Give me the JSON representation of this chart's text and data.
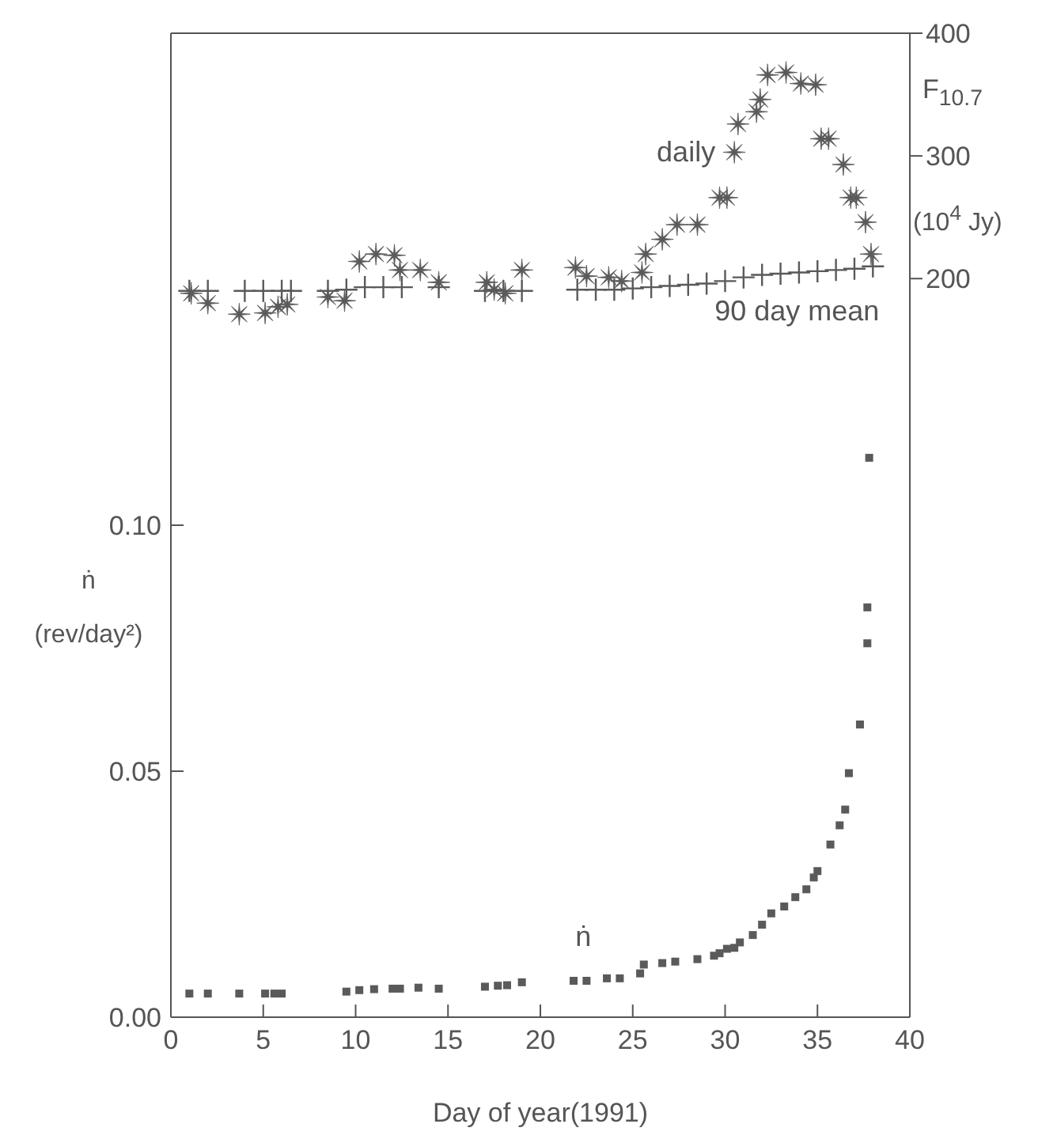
{
  "chart_data": {
    "type": "scatter",
    "xlabel": "Day of year(1991)",
    "ylabel": "ṅ (rev/day²)",
    "y2label": "F$_{10.7}$ (10$^{4}$ Jy)",
    "xlim": [
      0,
      40
    ],
    "xticks": [
      0,
      5,
      10,
      15,
      20,
      25,
      30,
      35,
      40
    ],
    "ylim": [
      0,
      0.2
    ],
    "yticks": [
      {
        "value": 0,
        "label": "0.00"
      },
      {
        "value": 0.05,
        "label": "0.05"
      },
      {
        "value": 0.1,
        "label": "0.10"
      }
    ],
    "y2lim": [
      -402,
      400
    ],
    "y2ticks": [
      200,
      300,
      400
    ],
    "series": [
      {
        "name": "ṅ",
        "marker": "square",
        "color": "#5a5a5a",
        "x": [
          1.0,
          2.0,
          3.7,
          5.1,
          5.6,
          6.0,
          9.5,
          10.2,
          11.0,
          12.0,
          12.4,
          13.4,
          14.5,
          17.0,
          17.7,
          18.2,
          19.0,
          21.8,
          22.5,
          23.6,
          24.3,
          25.4,
          25.6,
          26.6,
          27.3,
          28.5,
          29.4,
          29.7,
          30.1,
          30.5,
          30.8,
          31.5,
          32.0,
          32.5,
          33.2,
          33.8,
          34.4,
          34.8,
          35.0,
          35.7,
          36.2,
          36.5,
          36.7,
          37.3,
          37.7,
          37.7,
          37.8
        ],
        "values": [
          0.0048,
          0.0048,
          0.0048,
          0.0048,
          0.0048,
          0.0048,
          0.0052,
          0.0055,
          0.0057,
          0.0058,
          0.0058,
          0.006,
          0.0058,
          0.0062,
          0.0064,
          0.0065,
          0.0071,
          0.0074,
          0.0074,
          0.0079,
          0.0079,
          0.0089,
          0.0107,
          0.011,
          0.0113,
          0.0118,
          0.0125,
          0.013,
          0.0139,
          0.0141,
          0.0152,
          0.0167,
          0.0188,
          0.0211,
          0.0225,
          0.0244,
          0.026,
          0.0284,
          0.0297,
          0.0351,
          0.039,
          0.0422,
          0.0496,
          0.0595,
          0.076,
          0.0833,
          0.1137
        ]
      },
      {
        "name": "daily",
        "marker": "star",
        "axis": "y2",
        "color": "#5a5a5a",
        "x": [
          1.1,
          2.0,
          3.7,
          5.1,
          5.8,
          6.3,
          8.5,
          9.4,
          10.2,
          11.1,
          12.1,
          12.4,
          13.5,
          14.5,
          17.1,
          17.5,
          18.1,
          19.0,
          21.9,
          22.5,
          23.7,
          24.4,
          25.5,
          25.7,
          26.6,
          27.4,
          28.5,
          29.7,
          30.1,
          30.5,
          30.7,
          31.7,
          31.9,
          32.3,
          33.3,
          34.1,
          34.9,
          35.2,
          35.6,
          36.4,
          36.8,
          37.1,
          37.6,
          37.9
        ],
        "values": [
          188,
          180,
          171,
          172,
          177,
          179,
          185,
          182,
          214,
          220,
          219,
          207,
          207,
          197,
          197,
          191,
          188,
          207,
          209,
          202,
          201,
          198,
          205,
          220,
          232,
          244,
          244,
          266,
          266,
          303,
          326,
          336,
          346,
          366,
          368,
          359,
          358,
          314,
          314,
          293,
          266,
          266,
          246,
          220
        ]
      },
      {
        "name": "90 day mean",
        "marker": "cross",
        "axis": "y2",
        "color": "#5a5a5a",
        "x": [
          1,
          2,
          4,
          5,
          6,
          6.5,
          8.5,
          9.5,
          10.5,
          11.5,
          12.5,
          14.5,
          17,
          18,
          19,
          22,
          23,
          24,
          25,
          26,
          27,
          28,
          29,
          30,
          31,
          32,
          33,
          34,
          35,
          36,
          37,
          38
        ],
        "values": [
          190,
          190,
          190,
          190,
          190,
          190,
          190,
          191,
          193,
          193,
          193,
          193,
          190,
          190,
          190,
          191,
          191,
          191,
          192,
          193,
          194,
          195,
          196,
          198,
          201,
          203,
          204,
          205,
          206,
          207,
          208,
          210
        ]
      }
    ]
  }
}
